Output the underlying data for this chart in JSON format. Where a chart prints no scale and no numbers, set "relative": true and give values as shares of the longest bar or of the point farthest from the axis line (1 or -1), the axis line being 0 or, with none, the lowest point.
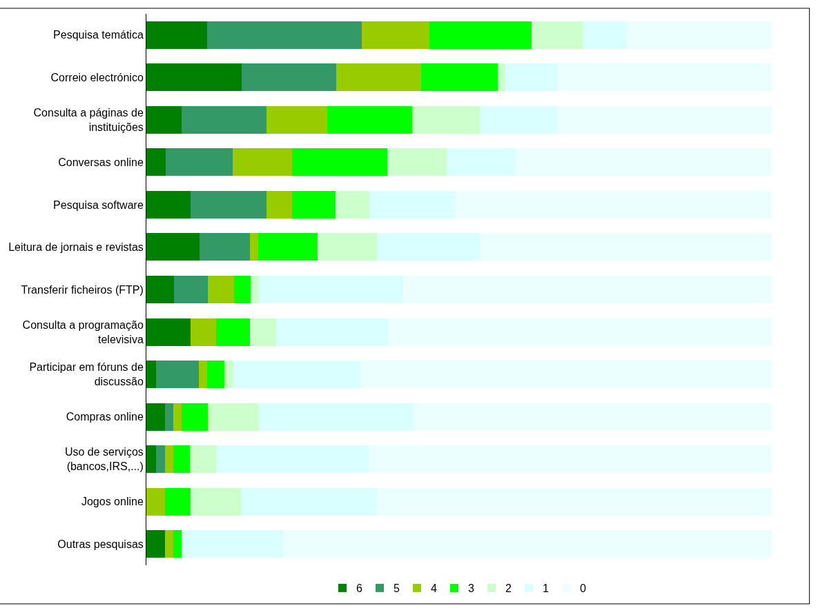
{
  "chart_data": {
    "type": "bar",
    "orientation": "horizontal",
    "stacked": true,
    "relative": true,
    "legend": "bottom",
    "categories": [
      "Pesquisa temática",
      "Correio electrónico",
      "Consulta a páginas de\ninstituições",
      "Conversas online",
      "Pesquisa software",
      "Leitura de jornais e revistas",
      "Transferir ficheiros (FTP)",
      "Consulta a programação\ntelevisiva",
      "Participar em fóruns de\ndiscussão",
      "Compras online",
      "Uso de serviços\n(bancos,IRS,...)",
      "Jogos online",
      "Outras pesquisas"
    ],
    "series": [
      {
        "name": "6",
        "color": "#008000",
        "values": [
          0.097,
          0.152,
          0.056,
          0.031,
          0.071,
          0.085,
          0.044,
          0.071,
          0.015,
          0.03,
          0.015,
          0,
          0.03
        ]
      },
      {
        "name": "5",
        "color": "#339966",
        "values": [
          0.247,
          0.151,
          0.136,
          0.107,
          0.121,
          0.081,
          0.054,
          0,
          0.069,
          0.013,
          0.015,
          0,
          0
        ]
      },
      {
        "name": "4",
        "color": "#99cc00",
        "values": [
          0.108,
          0.136,
          0.097,
          0.095,
          0.041,
          0.013,
          0.042,
          0.041,
          0.013,
          0.013,
          0.013,
          0.03,
          0.013
        ]
      },
      {
        "name": "3",
        "color": "#00ff00",
        "values": [
          0.164,
          0.123,
          0.136,
          0.152,
          0.069,
          0.095,
          0.027,
          0.054,
          0.028,
          0.042,
          0.027,
          0.041,
          0.013
        ]
      },
      {
        "name": "2",
        "color": "#ccffcc",
        "values": [
          0.082,
          0.012,
          0.108,
          0.095,
          0.054,
          0.095,
          0.013,
          0.042,
          0.013,
          0.082,
          0.042,
          0.08,
          0
        ]
      },
      {
        "name": "1",
        "color": "#d9ffff",
        "values": [
          0.07,
          0.084,
          0.124,
          0.111,
          0.137,
          0.164,
          0.231,
          0.178,
          0.205,
          0.247,
          0.243,
          0.218,
          0.162
        ]
      },
      {
        "name": "0",
        "color": "#ecffff",
        "values": [
          0.232,
          0.342,
          0.343,
          0.409,
          0.507,
          0.467,
          0.589,
          0.614,
          0.657,
          0.573,
          0.645,
          0.631,
          0.782
        ]
      }
    ]
  }
}
